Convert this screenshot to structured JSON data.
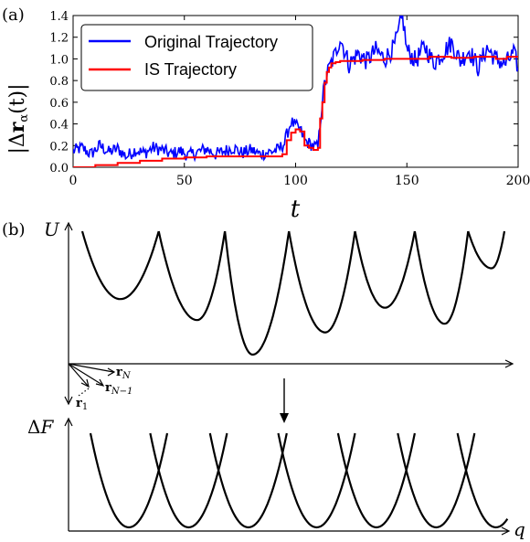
{
  "panel_a": {
    "label": "(a)",
    "chart_data": {
      "type": "line",
      "xlabel": "t",
      "ylabel": "|Δr_α(t)|",
      "xlim": [
        0,
        200
      ],
      "ylim": [
        0,
        1.4
      ],
      "x_ticks": [
        "0",
        "50",
        "100",
        "150",
        "200"
      ],
      "y_ticks": [
        "0.0",
        "0.2",
        "0.4",
        "0.6",
        "0.8",
        "1.0",
        "1.2",
        "1.4"
      ],
      "legend_position": "upper-left",
      "series": [
        {
          "name": "Original Trajectory",
          "color": "#0000ff",
          "style": "noisy",
          "x": [
            0,
            4,
            8,
            12,
            16,
            20,
            24,
            28,
            32,
            36,
            40,
            44,
            48,
            52,
            56,
            60,
            64,
            68,
            72,
            76,
            80,
            84,
            88,
            92,
            95,
            96,
            98,
            100,
            102,
            104,
            106,
            108,
            110,
            111,
            112,
            113,
            114,
            116,
            118,
            120,
            124,
            128,
            132,
            136,
            140,
            144,
            146,
            148,
            149,
            150,
            154,
            158,
            162,
            166,
            170,
            174,
            178,
            182,
            186,
            190,
            194,
            198,
            200
          ],
          "y": [
            0.15,
            0.18,
            0.12,
            0.2,
            0.14,
            0.17,
            0.1,
            0.16,
            0.13,
            0.18,
            0.16,
            0.12,
            0.15,
            0.11,
            0.14,
            0.17,
            0.12,
            0.15,
            0.18,
            0.13,
            0.16,
            0.12,
            0.14,
            0.16,
            0.22,
            0.3,
            0.42,
            0.38,
            0.35,
            0.25,
            0.22,
            0.2,
            0.18,
            0.4,
            0.6,
            0.75,
            0.85,
            0.96,
            1.05,
            1.2,
            0.95,
            1.05,
            0.98,
            1.08,
            1.0,
            1.1,
            1.22,
            1.4,
            1.25,
            1.08,
            0.98,
            1.12,
            0.96,
            1.05,
            1.15,
            0.98,
            1.08,
            0.92,
            1.1,
            1.0,
            0.95,
            1.05,
            0.92
          ]
        },
        {
          "name": "IS Trajectory",
          "color": "#ff0000",
          "style": "step",
          "x": [
            0,
            10,
            20,
            30,
            40,
            50,
            60,
            70,
            80,
            90,
            94,
            96,
            98,
            100,
            102,
            104,
            106,
            108,
            110,
            111,
            112,
            113,
            114,
            115,
            116,
            118,
            120,
            130,
            140,
            150,
            160,
            170,
            180,
            190,
            195,
            200
          ],
          "y": [
            0.0,
            0.02,
            0.04,
            0.06,
            0.08,
            0.09,
            0.1,
            0.1,
            0.1,
            0.1,
            0.12,
            0.25,
            0.32,
            0.35,
            0.33,
            0.2,
            0.18,
            0.16,
            0.18,
            0.45,
            0.6,
            0.78,
            0.88,
            0.92,
            0.96,
            0.97,
            0.98,
            0.99,
            1.0,
            1.0,
            1.02,
            1.01,
            1.02,
            1.0,
            1.02,
            1.02
          ]
        }
      ]
    }
  },
  "panel_b": {
    "label": "(b)",
    "upper_ylabel": "U",
    "lower_ylabel": "ΔF",
    "lower_xlabel": "q",
    "vec_rN": "r_N",
    "vec_rN1": "r_{N−1}",
    "vec_r1": "r_1",
    "chart_data": [
      {
        "type": "line",
        "description_role": "upper-potential",
        "wells": [
          {
            "center": 0.1,
            "depth": 0.55
          },
          {
            "center": 0.28,
            "depth": 0.72
          },
          {
            "center": 0.41,
            "depth": 1.0
          },
          {
            "center": 0.58,
            "depth": 0.82
          },
          {
            "center": 0.72,
            "depth": 0.62
          },
          {
            "center": 0.86,
            "depth": 0.75
          },
          {
            "center": 0.97,
            "depth": 0.3
          }
        ]
      },
      {
        "type": "line",
        "description_role": "lower-free-energy",
        "parabolas": [
          {
            "center": 0.12
          },
          {
            "center": 0.26
          },
          {
            "center": 0.4
          },
          {
            "center": 0.56
          },
          {
            "center": 0.7
          },
          {
            "center": 0.84
          },
          {
            "center": 0.98
          }
        ]
      }
    ]
  }
}
